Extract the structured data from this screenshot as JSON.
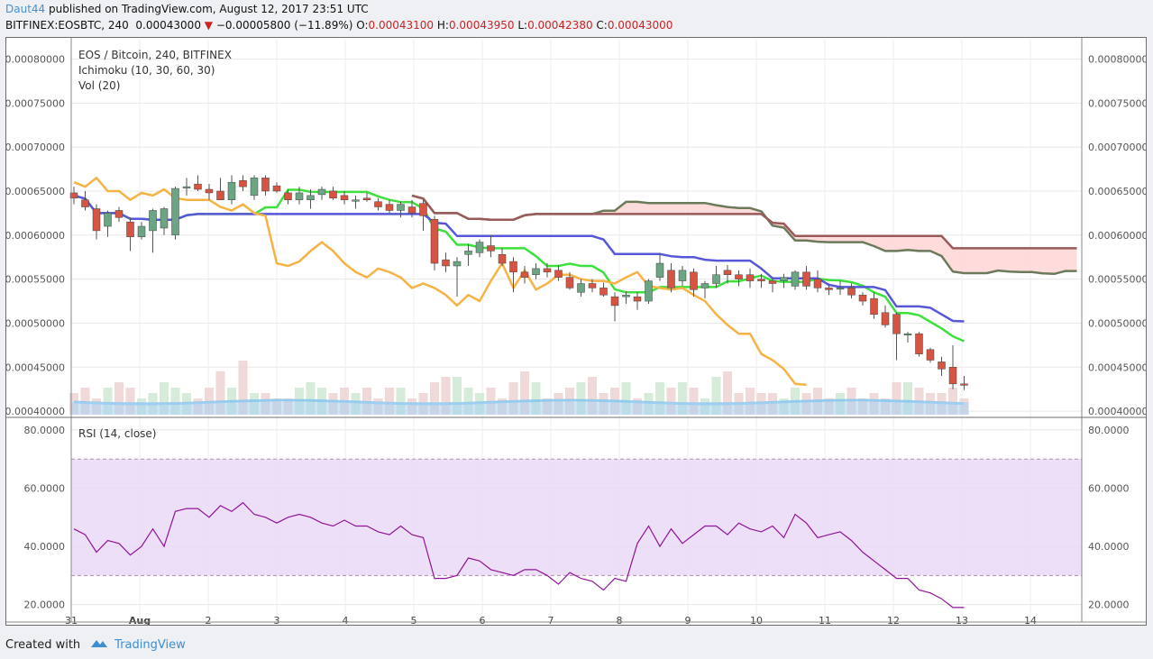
{
  "header": {
    "user": "Daut44",
    "published_text": "published on TradingView.com, August 12, 2017 23:51 UTC",
    "symbol": "BITFINEX:EOSBTC, 240",
    "last_price": "0.00043000",
    "change_arrow": "▼",
    "change": "−0.00005800 (−11.89%)",
    "o_label": "O:",
    "o_value": "0.00043100",
    "h_label": "H:",
    "h_value": "0.00043950",
    "l_label": "L:",
    "l_value": "0.00042380",
    "c_label": "C:",
    "c_value": "0.00043000"
  },
  "legend": {
    "title": "EOS / Bitcoin, 240, BITFINEX",
    "ichimoku": "Ichimoku (10, 30, 60, 30)",
    "vol": "Vol (20)",
    "rsi": "RSI (14, close)"
  },
  "footer": {
    "created_with": "Created with",
    "brand": "TradingView"
  },
  "colors": {
    "up": "#6ba583",
    "down": "#d75442",
    "conversion": "#5757d9",
    "base": "#3de03d",
    "lagging": "#f7b244",
    "lead_a": "#9b5a5a",
    "lead_b": "#6b7a5a",
    "cloud": "#ffd6d6",
    "rsi": "#8e1599",
    "rsi_band": "#e9d7f5",
    "volume_ma": "#88c8f0"
  },
  "chart_data": [
    {
      "type": "candlestick",
      "title": "EOS / Bitcoin, 240, BITFINEX",
      "ylim": [
        0.000395,
        0.000822
      ],
      "y_ticks": [
        "0.00080000",
        "0.00075000",
        "0.00070000",
        "0.00065000",
        "0.00060000",
        "0.00055000",
        "0.00050000",
        "0.00045000",
        "0.00040000"
      ],
      "x_ticks": [
        "31",
        "Aug",
        "2",
        "3",
        "4",
        "5",
        "6",
        "7",
        "8",
        "9",
        "10",
        "11",
        "12",
        "13",
        "14"
      ],
      "grid": true,
      "candles_ohlc": [
        [
          0.000648,
          0.000655,
          0.000635,
          0.000642
        ],
        [
          0.00064,
          0.00065,
          0.000628,
          0.000632
        ],
        [
          0.00063,
          0.000635,
          0.000595,
          0.000605
        ],
        [
          0.00061,
          0.000628,
          0.000598,
          0.000625
        ],
        [
          0.000628,
          0.000632,
          0.000615,
          0.00062
        ],
        [
          0.000615,
          0.00062,
          0.000582,
          0.000598
        ],
        [
          0.000598,
          0.000615,
          0.000595,
          0.00061
        ],
        [
          0.000605,
          0.00063,
          0.00058,
          0.000628
        ],
        [
          0.000608,
          0.000632,
          0.0006,
          0.00063
        ],
        [
          0.0006,
          0.000655,
          0.000595,
          0.000653
        ],
        [
          0.000655,
          0.000665,
          0.000645,
          0.000655
        ],
        [
          0.000658,
          0.000668,
          0.00065,
          0.000652
        ],
        [
          0.000652,
          0.000658,
          0.00064,
          0.000648
        ],
        [
          0.00065,
          0.000665,
          0.00064,
          0.00064
        ],
        [
          0.00064,
          0.000668,
          0.000635,
          0.00066
        ],
        [
          0.000662,
          0.000668,
          0.00065,
          0.000655
        ],
        [
          0.000645,
          0.000668,
          0.00064,
          0.000665
        ],
        [
          0.000665,
          0.000668,
          0.000645,
          0.00065
        ],
        [
          0.000656,
          0.00066,
          0.000648,
          0.00065
        ],
        [
          0.000648,
          0.000652,
          0.000635,
          0.00064
        ],
        [
          0.00064,
          0.000655,
          0.000635,
          0.000648
        ],
        [
          0.00064,
          0.000652,
          0.00063,
          0.000645
        ],
        [
          0.000646,
          0.000655,
          0.00064,
          0.000652
        ],
        [
          0.00065,
          0.000655,
          0.00064,
          0.000642
        ],
        [
          0.000645,
          0.00065,
          0.000635,
          0.00064
        ],
        [
          0.00064,
          0.000645,
          0.00063,
          0.00064
        ],
        [
          0.000642,
          0.000648,
          0.000638,
          0.00064
        ],
        [
          0.000638,
          0.000642,
          0.000628,
          0.000632
        ],
        [
          0.000635,
          0.00064,
          0.000625,
          0.000628
        ],
        [
          0.000628,
          0.000638,
          0.00062,
          0.000635
        ],
        [
          0.000632,
          0.00064,
          0.00062,
          0.000625
        ],
        [
          0.000636,
          0.00064,
          0.000605,
          0.000622
        ],
        [
          0.000618,
          0.000622,
          0.00056,
          0.000568
        ],
        [
          0.000572,
          0.00058,
          0.000558,
          0.000565
        ],
        [
          0.000565,
          0.000575,
          0.00053,
          0.00057
        ],
        [
          0.000578,
          0.00059,
          0.000565,
          0.000582
        ],
        [
          0.00058,
          0.000595,
          0.000575,
          0.000592
        ],
        [
          0.000588,
          0.0006,
          0.000575,
          0.000582
        ],
        [
          0.000578,
          0.000585,
          0.000565,
          0.000568
        ],
        [
          0.00057,
          0.000575,
          0.000535,
          0.000558
        ],
        [
          0.000558,
          0.000565,
          0.000545,
          0.000552
        ],
        [
          0.000555,
          0.000568,
          0.00055,
          0.000562
        ],
        [
          0.000562,
          0.000568,
          0.000552,
          0.000558
        ],
        [
          0.00056,
          0.000566,
          0.000548,
          0.000552
        ],
        [
          0.000552,
          0.000558,
          0.000538,
          0.00054
        ],
        [
          0.000535,
          0.00055,
          0.00053,
          0.000545
        ],
        [
          0.000545,
          0.00055,
          0.000535,
          0.00054
        ],
        [
          0.00054,
          0.000546,
          0.00053,
          0.000532
        ],
        [
          0.00053,
          0.000535,
          0.000502,
          0.00052
        ],
        [
          0.00053,
          0.000536,
          0.000522,
          0.000532
        ],
        [
          0.00053,
          0.000535,
          0.000515,
          0.000525
        ],
        [
          0.000525,
          0.00055,
          0.000522,
          0.000548
        ],
        [
          0.000552,
          0.00058,
          0.000548,
          0.000568
        ],
        [
          0.00056,
          0.000568,
          0.000535,
          0.00054
        ],
        [
          0.000548,
          0.000565,
          0.000542,
          0.00056
        ],
        [
          0.000558,
          0.000562,
          0.00053,
          0.000538
        ],
        [
          0.00054,
          0.000548,
          0.000528,
          0.000545
        ],
        [
          0.000545,
          0.000565,
          0.00054,
          0.000555
        ],
        [
          0.00056,
          0.000566,
          0.000545,
          0.000555
        ],
        [
          0.000555,
          0.00056,
          0.000542,
          0.00055
        ],
        [
          0.000555,
          0.000562,
          0.00054,
          0.000548
        ],
        [
          0.00055,
          0.000556,
          0.00054,
          0.000548
        ],
        [
          0.000548,
          0.000552,
          0.000535,
          0.000545
        ],
        [
          0.000548,
          0.000556,
          0.00054,
          0.000552
        ],
        [
          0.000542,
          0.00056,
          0.000538,
          0.000558
        ],
        [
          0.000558,
          0.000565,
          0.000538,
          0.000542
        ],
        [
          0.00055,
          0.00056,
          0.000535,
          0.00054
        ],
        [
          0.00054,
          0.000545,
          0.000532,
          0.000538
        ],
        [
          0.00054,
          0.000548,
          0.000532,
          0.00054
        ],
        [
          0.00054,
          0.000545,
          0.000528,
          0.000532
        ],
        [
          0.000532,
          0.000535,
          0.00052,
          0.000525
        ],
        [
          0.000528,
          0.000535,
          0.000505,
          0.00051
        ],
        [
          0.000512,
          0.00052,
          0.000495,
          0.000498
        ],
        [
          0.00051,
          0.000512,
          0.000458,
          0.000488
        ],
        [
          0.000488,
          0.00049,
          0.000478,
          0.000488
        ],
        [
          0.000488,
          0.00049,
          0.000462,
          0.000465
        ],
        [
          0.00047,
          0.000472,
          0.000455,
          0.000458
        ],
        [
          0.000456,
          0.000462,
          0.00044,
          0.000448
        ],
        [
          0.00045,
          0.000475,
          0.000425,
          0.000431
        ],
        [
          0.000431,
          0.00044,
          0.000424,
          0.00043
        ]
      ],
      "volume_heights": [
        0.4,
        0.5,
        0.3,
        0.5,
        0.6,
        0.5,
        0.3,
        0.4,
        0.6,
        0.5,
        0.4,
        0.3,
        0.5,
        0.8,
        0.5,
        1.0,
        0.4,
        0.4,
        0.3,
        0.3,
        0.5,
        0.6,
        0.5,
        0.4,
        0.5,
        0.4,
        0.5,
        0.3,
        0.5,
        0.5,
        0.3,
        0.4,
        0.6,
        0.7,
        0.7,
        0.5,
        0.4,
        0.5,
        0.3,
        0.6,
        0.8,
        0.6,
        0.3,
        0.4,
        0.5,
        0.6,
        0.7,
        0.4,
        0.5,
        0.6,
        0.3,
        0.4,
        0.6,
        0.5,
        0.6,
        0.5,
        0.3,
        0.7,
        0.8,
        0.4,
        0.5,
        0.4,
        0.4,
        0.3,
        0.5,
        0.4,
        0.5,
        0.3,
        0.4,
        0.5,
        0.3,
        0.4,
        0.3,
        0.6,
        0.6,
        0.5,
        0.4,
        0.4,
        0.5,
        0.3
      ]
    },
    {
      "type": "line",
      "title": "RSI (14, close)",
      "series": [
        {
          "name": "RSI",
          "values": [
            46,
            44,
            38,
            42,
            41,
            37,
            40,
            46,
            40,
            52,
            53,
            53,
            50,
            54,
            52,
            55,
            51,
            50,
            48,
            50,
            51,
            50,
            48,
            47,
            49,
            47,
            47,
            45,
            44,
            47,
            44,
            43,
            29,
            29,
            30,
            36,
            35,
            32,
            31,
            30,
            32,
            32,
            30,
            27,
            31,
            29,
            28,
            25,
            29,
            28,
            41,
            47,
            40,
            46,
            41,
            44,
            47,
            47,
            44,
            48,
            46,
            45,
            47,
            43,
            51,
            48,
            43,
            44,
            45,
            42,
            38,
            35,
            32,
            29,
            29,
            25,
            24,
            22,
            19,
            19
          ]
        }
      ],
      "ylim": [
        14,
        84
      ],
      "y_ticks": [
        "80.0000",
        "60.0000",
        "40.0000",
        "20.0000"
      ],
      "band": [
        30,
        70
      ]
    }
  ]
}
